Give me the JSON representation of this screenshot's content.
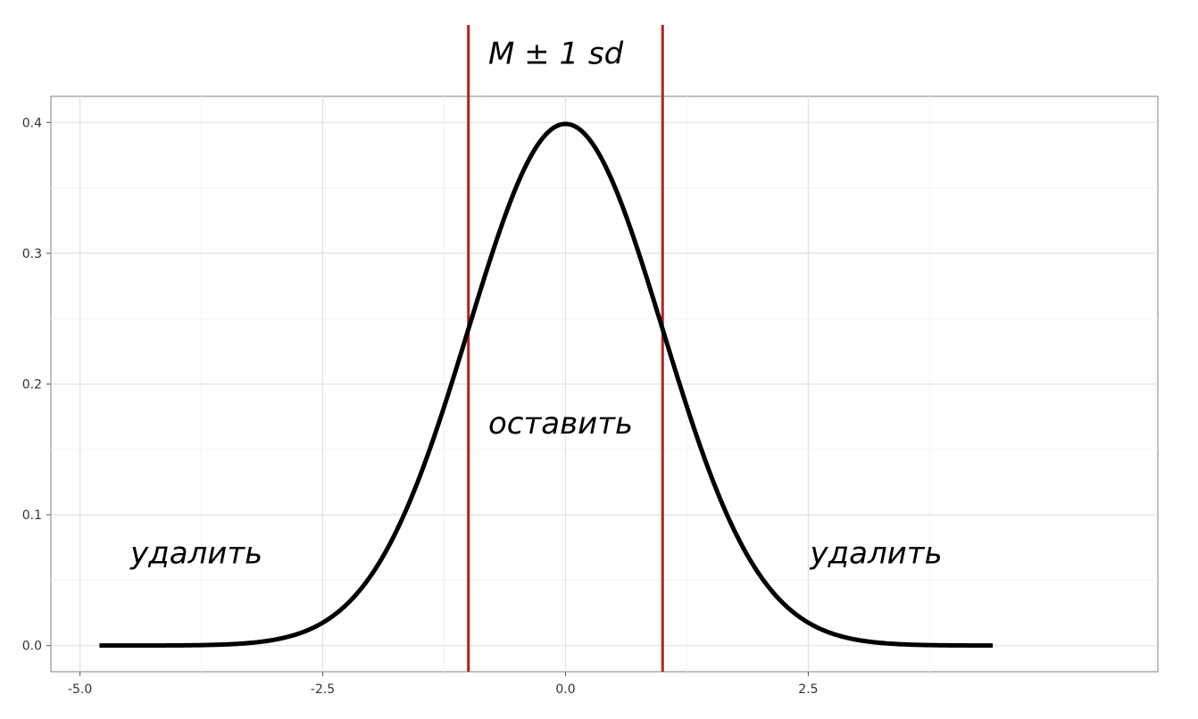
{
  "chart_data": {
    "type": "line",
    "title": "",
    "xlabel": "",
    "ylabel": "",
    "xlim": [
      -5.3,
      6.1
    ],
    "ylim": [
      -0.02,
      0.42
    ],
    "grid": true,
    "x_ticks": [
      -5.0,
      -2.5,
      0.0,
      2.5
    ],
    "x_tick_labels": [
      "-5.0",
      "-2.5",
      "0.0",
      "2.5"
    ],
    "y_ticks": [
      0.0,
      0.1,
      0.2,
      0.3,
      0.4
    ],
    "y_tick_labels": [
      "0.0",
      "0.1",
      "0.2",
      "0.3",
      "0.4"
    ],
    "series": [
      {
        "color": "#000000",
        "x_range": [
          -4.8,
          4.4
        ],
        "function": "standard normal density",
        "mean": 0,
        "sd": 1
      }
    ],
    "vlines": [
      {
        "x": -1,
        "color": "#b22222"
      },
      {
        "x": 1,
        "color": "#b22222"
      }
    ],
    "annotations": [
      {
        "key": "band_label",
        "text": "M ± 1 sd",
        "x": -0.1,
        "y": 0.445
      },
      {
        "key": "keep_label",
        "text": "оставить",
        "x": -0.05,
        "y": 0.162
      },
      {
        "key": "remove_left_label",
        "text": "удалить",
        "x": -3.8,
        "y": 0.063
      },
      {
        "key": "remove_right_label",
        "text": "удалить",
        "x": 3.2,
        "y": 0.063
      }
    ]
  }
}
